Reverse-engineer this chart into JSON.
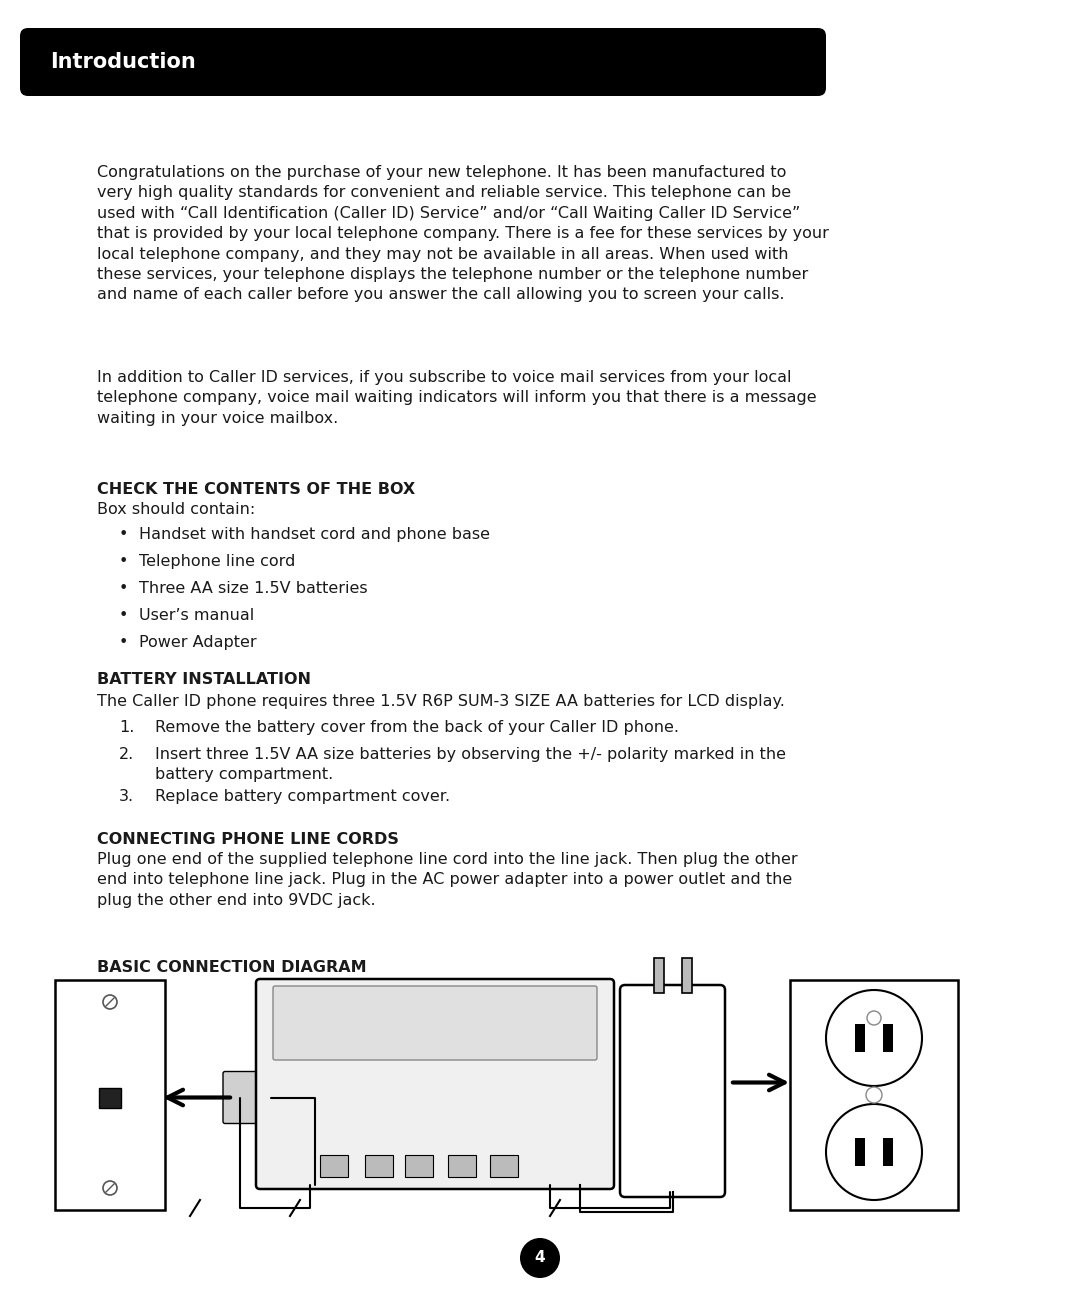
{
  "bg_color": "#ffffff",
  "header_bg": "#000000",
  "header_text": "Introduction",
  "header_text_color": "#ffffff",
  "body_color": "#1a1a1a",
  "intro_para1": "Congratulations on the purchase of your new telephone. It has been manufactured to\nvery high quality standards for convenient and reliable service. This telephone can be\nused with “Call Identification (Caller ID) Service” and/or “Call Waiting Caller ID Service”\nthat is provided by your local telephone company. There is a fee for these services by your\nlocal telephone company, and they may not be available in all areas. When used with\nthese services, your telephone displays the telephone number or the telephone number\nand name of each caller before you answer the call allowing you to screen your calls.",
  "intro_para2": "In addition to Caller ID services, if you subscribe to voice mail services from your local\ntelephone company, voice mail waiting indicators will inform you that there is a message\nwaiting in your voice mailbox.",
  "section1_title": "CHECK THE CONTENTS OF THE BOX",
  "section1_intro": "Box should contain:",
  "section1_items": [
    "Handset with handset cord and phone base",
    "Telephone line cord",
    "Three AA size 1.5V batteries",
    "User’s manual",
    "Power Adapter"
  ],
  "section2_title": "BATTERY INSTALLATION",
  "section2_intro": "The Caller ID phone requires three 1.5V R6P SUM-3 SIZE AA batteries for LCD display.",
  "section2_items": [
    "Remove the battery cover from the back of your Caller ID phone.",
    "Insert three 1.5V AA size batteries by observing the +/- polarity marked in the\nbattery compartment.",
    "Replace battery compartment cover."
  ],
  "section3_title": "CONNECTING PHONE LINE CORDS",
  "section3_para": "Plug one end of the supplied telephone line cord into the line jack. Then plug the other\nend into telephone line jack. Plug in the AC power adapter into a power outlet and the\nplug the other end into 9VDC jack.",
  "section4_title": "BASIC CONNECTION DIAGRAM",
  "page_number": "4",
  "fig_w": 10.8,
  "fig_h": 13.11,
  "dpi": 100
}
